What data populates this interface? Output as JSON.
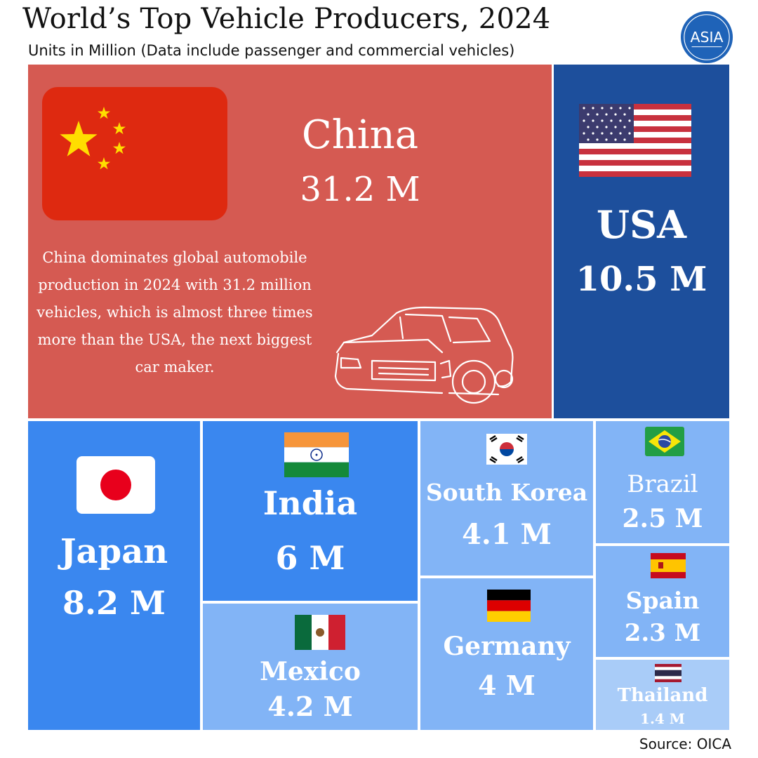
{
  "header": {
    "title": "World’s Top Vehicle Producers, 2024",
    "subtitle": "Units in Million (Data include passenger and commercial vehicles)",
    "logo_text": "ASIA",
    "source": "Source: OICA"
  },
  "chart_data": {
    "type": "treemap",
    "title": "World’s Top Vehicle Producers, 2024",
    "unit": "Units in Million",
    "items": [
      {
        "name": "China",
        "value": 31.2,
        "label": "31.2 M",
        "color": "#d55a52"
      },
      {
        "name": "USA",
        "value": 10.5,
        "label": "10.5 M",
        "color": "#1d4f9c"
      },
      {
        "name": "Japan",
        "value": 8.2,
        "label": "8.2 M",
        "color": "#3a87ef"
      },
      {
        "name": "India",
        "value": 6,
        "label": "6 M",
        "color": "#3a87ef"
      },
      {
        "name": "Mexico",
        "value": 4.2,
        "label": "4.2 M",
        "color": "#82b4f6"
      },
      {
        "name": "South Korea",
        "value": 4.1,
        "label": "4.1 M",
        "color": "#82b4f6"
      },
      {
        "name": "Germany",
        "value": 4,
        "label": "4 M",
        "color": "#82b4f6"
      },
      {
        "name": "Brazil",
        "value": 2.5,
        "label": "2.5 M",
        "color": "#82b4f6"
      },
      {
        "name": "Spain",
        "value": 2.3,
        "label": "2.3 M",
        "color": "#82b4f6"
      },
      {
        "name": "Thailand",
        "value": 1.4,
        "label": "1.4 M",
        "color": "#a9ccf8"
      }
    ],
    "annotation": "China dominates global automobile production in 2024 with 31.2 million vehicles, which is almost three times more than the USA, the next biggest car maker."
  }
}
